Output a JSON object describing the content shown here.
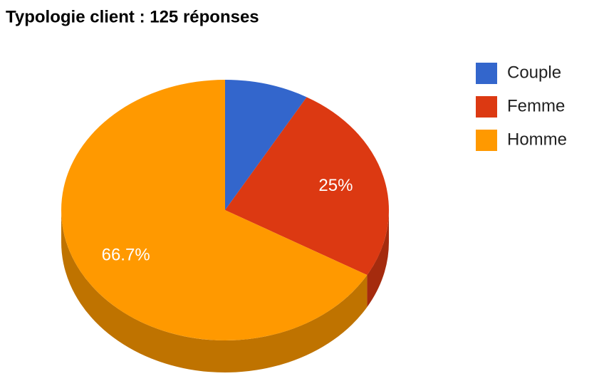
{
  "chart_data": {
    "type": "pie",
    "title": "Typologie client : 125 réponses",
    "categories": [
      "Couple",
      "Femme",
      "Homme"
    ],
    "values": [
      8.3,
      25,
      66.7
    ],
    "value_labels": [
      null,
      "25%",
      "66.7%"
    ],
    "colors": [
      "#3366cc",
      "#dc3912",
      "#ff9900"
    ],
    "legend": "right",
    "three_d": true
  }
}
